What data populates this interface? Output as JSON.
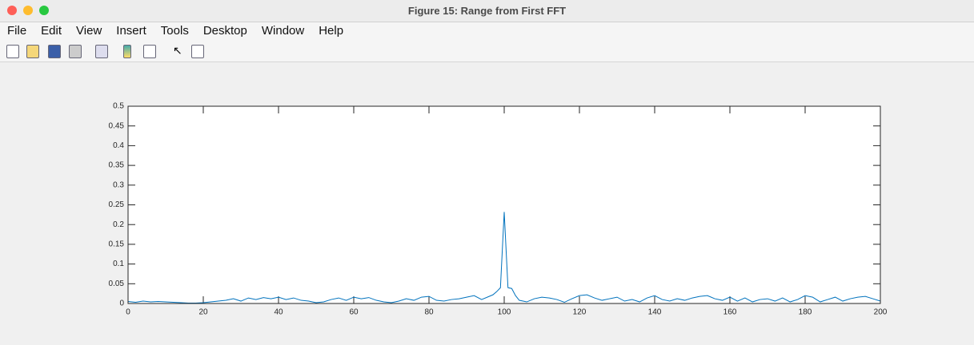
{
  "window": {
    "title": "Figure 15: Range from First FFT"
  },
  "menu": [
    "File",
    "Edit",
    "View",
    "Insert",
    "Tools",
    "Desktop",
    "Window",
    "Help"
  ],
  "chart_data": {
    "type": "line",
    "x": [
      0,
      2,
      4,
      6,
      8,
      10,
      12,
      14,
      16,
      18,
      20,
      22,
      24,
      26,
      28,
      30,
      32,
      34,
      36,
      38,
      40,
      42,
      44,
      46,
      48,
      50,
      52,
      54,
      56,
      58,
      60,
      62,
      64,
      66,
      68,
      70,
      72,
      74,
      76,
      78,
      80,
      82,
      84,
      86,
      88,
      90,
      92,
      94,
      96,
      97,
      98,
      99,
      100,
      101,
      102,
      103,
      104,
      106,
      108,
      110,
      112,
      114,
      116,
      118,
      120,
      122,
      124,
      126,
      128,
      130,
      132,
      134,
      136,
      138,
      140,
      142,
      144,
      146,
      148,
      150,
      152,
      154,
      156,
      158,
      160,
      162,
      164,
      166,
      168,
      170,
      172,
      174,
      176,
      178,
      180,
      182,
      184,
      186,
      188,
      190,
      192,
      194,
      196,
      198,
      200
    ],
    "values": [
      0.005,
      0.003,
      0.006,
      0.004,
      0.005,
      0.004,
      0.003,
      0.002,
      0.001,
      0.001,
      0.002,
      0.004,
      0.006,
      0.008,
      0.012,
      0.006,
      0.014,
      0.01,
      0.015,
      0.012,
      0.016,
      0.01,
      0.014,
      0.008,
      0.006,
      0.002,
      0.004,
      0.01,
      0.014,
      0.008,
      0.016,
      0.012,
      0.015,
      0.008,
      0.004,
      0.002,
      0.006,
      0.012,
      0.008,
      0.016,
      0.018,
      0.008,
      0.006,
      0.01,
      0.012,
      0.016,
      0.02,
      0.01,
      0.018,
      0.022,
      0.03,
      0.04,
      0.232,
      0.04,
      0.038,
      0.02,
      0.008,
      0.004,
      0.012,
      0.016,
      0.014,
      0.01,
      0.003,
      0.012,
      0.02,
      0.022,
      0.014,
      0.008,
      0.012,
      0.016,
      0.006,
      0.01,
      0.004,
      0.014,
      0.02,
      0.01,
      0.006,
      0.012,
      0.008,
      0.014,
      0.018,
      0.02,
      0.012,
      0.008,
      0.016,
      0.006,
      0.014,
      0.004,
      0.01,
      0.012,
      0.006,
      0.014,
      0.004,
      0.01,
      0.02,
      0.016,
      0.004,
      0.01,
      0.016,
      0.006,
      0.012,
      0.016,
      0.018,
      0.012,
      0.006
    ],
    "color": "#0072bd",
    "xlim": [
      0,
      200
    ],
    "xticks": [
      0,
      20,
      40,
      60,
      80,
      100,
      120,
      140,
      160,
      180,
      200
    ],
    "ylim": [
      0,
      0.5
    ],
    "yticks": [
      0,
      0.05,
      0.1,
      0.15,
      0.2,
      0.25,
      0.3,
      0.35,
      0.4,
      0.45,
      0.5
    ]
  }
}
